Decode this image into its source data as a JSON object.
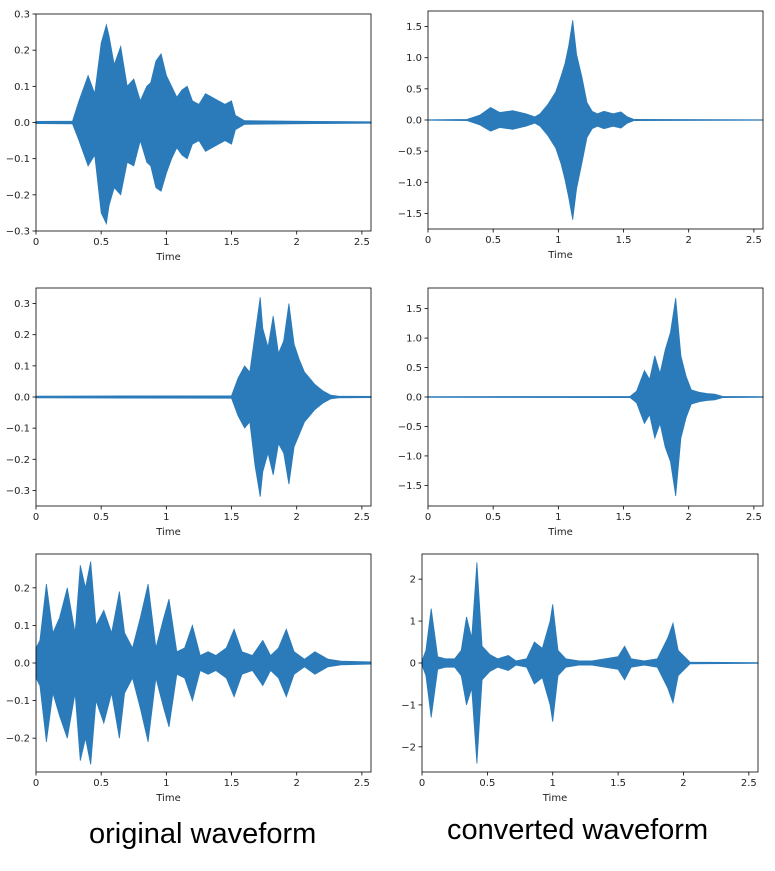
{
  "captions": {
    "left": "original waveform",
    "right": "converted waveform"
  },
  "colors": {
    "waveform": "#2b7bba",
    "axis": "#000000"
  },
  "chart_data": [
    {
      "type": "area",
      "xlabel": "Time",
      "xlim": [
        0,
        2.57
      ],
      "ylim": [
        -0.3,
        0.3
      ],
      "xticks": [
        0,
        0.5,
        1,
        1.5,
        2,
        2.5
      ],
      "xtick_labels": [
        "0",
        "0.5",
        "1",
        "1.5",
        "2",
        "2.5"
      ],
      "yticks": [
        -0.3,
        -0.2,
        -0.1,
        0.0,
        0.1,
        0.2,
        0.3
      ],
      "ytick_labels": [
        "−0.3",
        "−0.2",
        "−0.1",
        "0.0",
        "0.1",
        "0.2",
        "0.3"
      ],
      "envelope": {
        "x": [
          0,
          0.28,
          0.33,
          0.4,
          0.45,
          0.5,
          0.54,
          0.56,
          0.6,
          0.65,
          0.7,
          0.75,
          0.8,
          0.85,
          0.88,
          0.92,
          0.96,
          1.0,
          1.04,
          1.08,
          1.12,
          1.16,
          1.2,
          1.25,
          1.3,
          1.35,
          1.4,
          1.45,
          1.5,
          1.53,
          1.6,
          2.15,
          2.57
        ],
        "top": [
          0.003,
          0.004,
          0.06,
          0.13,
          0.08,
          0.22,
          0.27,
          0.24,
          0.16,
          0.21,
          0.1,
          0.12,
          0.06,
          0.1,
          0.11,
          0.17,
          0.19,
          0.13,
          0.1,
          0.07,
          0.09,
          0.1,
          0.06,
          0.05,
          0.08,
          0.07,
          0.06,
          0.05,
          0.06,
          0.02,
          0.005,
          0.003,
          0.002
        ],
        "bottom": [
          -0.003,
          -0.004,
          -0.05,
          -0.12,
          -0.09,
          -0.25,
          -0.28,
          -0.23,
          -0.18,
          -0.2,
          -0.11,
          -0.12,
          -0.05,
          -0.11,
          -0.12,
          -0.18,
          -0.19,
          -0.14,
          -0.1,
          -0.07,
          -0.09,
          -0.1,
          -0.06,
          -0.05,
          -0.08,
          -0.07,
          -0.06,
          -0.05,
          -0.06,
          -0.02,
          -0.005,
          -0.003,
          -0.002
        ]
      }
    },
    {
      "type": "area",
      "xlabel": "Time",
      "xlim": [
        0,
        2.57
      ],
      "ylim": [
        -1.75,
        1.75
      ],
      "xticks": [
        0,
        0.5,
        1,
        1.5,
        2,
        2.5
      ],
      "xtick_labels": [
        "0",
        "0.5",
        "1",
        "1.5",
        "2",
        "2.5"
      ],
      "yticks": [
        -1.5,
        -1.0,
        -0.5,
        0.0,
        0.5,
        1.0,
        1.5
      ],
      "ytick_labels": [
        "−1.5",
        "−1.0",
        "−0.5",
        "0.0",
        "0.5",
        "1.0",
        "1.5"
      ],
      "envelope": {
        "x": [
          0,
          0.3,
          0.4,
          0.48,
          0.55,
          0.65,
          0.75,
          0.82,
          0.86,
          0.92,
          0.98,
          1.02,
          1.05,
          1.08,
          1.11,
          1.14,
          1.18,
          1.22,
          1.26,
          1.3,
          1.35,
          1.42,
          1.48,
          1.53,
          1.58,
          2.57
        ],
        "top": [
          0.004,
          0.01,
          0.08,
          0.2,
          0.12,
          0.15,
          0.1,
          0.05,
          0.1,
          0.25,
          0.45,
          0.7,
          0.9,
          1.2,
          1.6,
          1.05,
          0.7,
          0.28,
          0.14,
          0.1,
          0.14,
          0.1,
          0.13,
          0.05,
          0.01,
          0.004
        ],
        "bottom": [
          -0.004,
          -0.01,
          -0.08,
          -0.18,
          -0.12,
          -0.15,
          -0.1,
          -0.05,
          -0.1,
          -0.25,
          -0.45,
          -0.7,
          -0.95,
          -1.25,
          -1.6,
          -1.1,
          -0.7,
          -0.28,
          -0.14,
          -0.1,
          -0.14,
          -0.1,
          -0.13,
          -0.05,
          -0.01,
          -0.004
        ]
      }
    },
    {
      "type": "area",
      "xlabel": "Time",
      "xlim": [
        0,
        2.57
      ],
      "ylim": [
        -0.35,
        0.35
      ],
      "xticks": [
        0,
        0.5,
        1,
        1.5,
        2,
        2.5
      ],
      "xtick_labels": [
        "0",
        "0.5",
        "1",
        "1.5",
        "2",
        "2.5"
      ],
      "yticks": [
        -0.3,
        -0.2,
        -0.1,
        0.0,
        0.1,
        0.2,
        0.3
      ],
      "ytick_labels": [
        "−0.3",
        "−0.2",
        "−0.1",
        "0.0",
        "0.1",
        "0.2",
        "0.3"
      ],
      "envelope": {
        "x": [
          0,
          1.5,
          1.55,
          1.6,
          1.64,
          1.68,
          1.72,
          1.74,
          1.78,
          1.82,
          1.86,
          1.9,
          1.94,
          1.98,
          2.02,
          2.06,
          2.1,
          2.14,
          2.2,
          2.26,
          2.32,
          2.57
        ],
        "top": [
          0.003,
          0.004,
          0.06,
          0.1,
          0.08,
          0.2,
          0.32,
          0.22,
          0.16,
          0.26,
          0.14,
          0.18,
          0.3,
          0.17,
          0.12,
          0.08,
          0.06,
          0.04,
          0.02,
          0.006,
          0.003,
          0.002
        ],
        "bottom": [
          -0.003,
          -0.004,
          -0.06,
          -0.1,
          -0.08,
          -0.22,
          -0.32,
          -0.24,
          -0.18,
          -0.25,
          -0.15,
          -0.18,
          -0.28,
          -0.16,
          -0.12,
          -0.08,
          -0.06,
          -0.04,
          -0.02,
          -0.006,
          -0.003,
          -0.002
        ]
      }
    },
    {
      "type": "area",
      "xlabel": "Time",
      "xlim": [
        0,
        2.57
      ],
      "ylim": [
        -1.85,
        1.85
      ],
      "xticks": [
        0,
        0.5,
        1,
        1.5,
        2,
        2.5
      ],
      "xtick_labels": [
        "0",
        "0.5",
        "1",
        "1.5",
        "2",
        "2.5"
      ],
      "yticks": [
        -1.5,
        -1.0,
        -0.5,
        0.0,
        0.5,
        1.0,
        1.5
      ],
      "ytick_labels": [
        "−1.5",
        "−1.0",
        "−0.5",
        "0.0",
        "0.5",
        "1.0",
        "1.5"
      ],
      "envelope": {
        "x": [
          0,
          1.55,
          1.6,
          1.66,
          1.7,
          1.74,
          1.78,
          1.82,
          1.86,
          1.9,
          1.94,
          1.98,
          2.02,
          2.08,
          2.14,
          2.2,
          2.26,
          2.57
        ],
        "top": [
          0.005,
          0.01,
          0.1,
          0.45,
          0.3,
          0.7,
          0.4,
          0.8,
          1.1,
          1.68,
          0.7,
          0.35,
          0.12,
          0.08,
          0.06,
          0.05,
          0.01,
          0.005
        ],
        "bottom": [
          -0.005,
          -0.01,
          -0.1,
          -0.45,
          -0.3,
          -0.7,
          -0.45,
          -0.85,
          -1.1,
          -1.68,
          -0.7,
          -0.35,
          -0.12,
          -0.08,
          -0.06,
          -0.05,
          -0.01,
          -0.005
        ]
      }
    },
    {
      "type": "area",
      "xlabel": "Time",
      "xlim": [
        0,
        2.57
      ],
      "ylim": [
        -0.29,
        0.29
      ],
      "xticks": [
        0,
        0.5,
        1,
        1.5,
        2,
        2.5
      ],
      "xtick_labels": [
        "0",
        "0.5",
        "1",
        "1.5",
        "2",
        "2.5"
      ],
      "yticks": [
        -0.2,
        -0.1,
        0.0,
        0.1,
        0.2
      ],
      "ytick_labels": [
        "−0.2",
        "−0.1",
        "0.0",
        "0.1",
        "0.2"
      ],
      "envelope": {
        "x": [
          0,
          0.03,
          0.08,
          0.13,
          0.18,
          0.24,
          0.3,
          0.34,
          0.38,
          0.42,
          0.46,
          0.52,
          0.58,
          0.64,
          0.68,
          0.74,
          0.8,
          0.86,
          0.92,
          0.98,
          1.02,
          1.08,
          1.14,
          1.2,
          1.26,
          1.32,
          1.38,
          1.46,
          1.52,
          1.58,
          1.66,
          1.74,
          1.8,
          1.86,
          1.92,
          1.98,
          2.06,
          2.14,
          2.24,
          2.34,
          2.57
        ],
        "top": [
          0.04,
          0.06,
          0.21,
          0.08,
          0.12,
          0.2,
          0.08,
          0.26,
          0.2,
          0.27,
          0.1,
          0.14,
          0.08,
          0.19,
          0.08,
          0.04,
          0.12,
          0.21,
          0.04,
          0.12,
          0.17,
          0.03,
          0.04,
          0.1,
          0.02,
          0.03,
          0.02,
          0.04,
          0.09,
          0.03,
          0.02,
          0.06,
          0.02,
          0.04,
          0.09,
          0.03,
          0.01,
          0.03,
          0.01,
          0.005,
          0.003
        ],
        "bottom": [
          -0.04,
          -0.06,
          -0.21,
          -0.08,
          -0.14,
          -0.2,
          -0.08,
          -0.26,
          -0.2,
          -0.27,
          -0.1,
          -0.16,
          -0.08,
          -0.2,
          -0.08,
          -0.04,
          -0.12,
          -0.21,
          -0.04,
          -0.12,
          -0.17,
          -0.03,
          -0.04,
          -0.1,
          -0.02,
          -0.03,
          -0.02,
          -0.04,
          -0.09,
          -0.03,
          -0.02,
          -0.06,
          -0.02,
          -0.04,
          -0.09,
          -0.03,
          -0.01,
          -0.03,
          -0.01,
          -0.005,
          -0.003
        ]
      }
    },
    {
      "type": "area",
      "xlabel": "Time",
      "xlim": [
        0,
        2.57
      ],
      "ylim": [
        -2.6,
        2.6
      ],
      "xticks": [
        0,
        0.5,
        1,
        1.5,
        2,
        2.5
      ],
      "xtick_labels": [
        "0",
        "0.5",
        "1",
        "1.5",
        "2",
        "2.5"
      ],
      "yticks": [
        -2,
        -1,
        0,
        1,
        2
      ],
      "ytick_labels": [
        "−2",
        "−1",
        "0",
        "1",
        "2"
      ],
      "envelope": {
        "x": [
          0,
          0.03,
          0.07,
          0.12,
          0.18,
          0.25,
          0.3,
          0.34,
          0.38,
          0.42,
          0.46,
          0.52,
          0.58,
          0.66,
          0.72,
          0.8,
          0.86,
          0.92,
          0.98,
          1.0,
          1.04,
          1.1,
          1.2,
          1.3,
          1.4,
          1.5,
          1.55,
          1.6,
          1.7,
          1.8,
          1.88,
          1.92,
          1.96,
          2.05,
          2.57
        ],
        "top": [
          0.05,
          0.3,
          1.3,
          0.15,
          0.1,
          0.1,
          0.3,
          1.1,
          0.6,
          2.4,
          0.4,
          0.2,
          0.1,
          0.18,
          0.05,
          0.1,
          0.5,
          0.35,
          1.0,
          1.4,
          0.3,
          0.1,
          0.05,
          0.05,
          0.1,
          0.15,
          0.4,
          0.1,
          0.05,
          0.1,
          0.6,
          0.95,
          0.3,
          0.02,
          0.01
        ],
        "bottom": [
          -0.05,
          -0.3,
          -1.3,
          -0.15,
          -0.1,
          -0.1,
          -0.3,
          -1.0,
          -0.6,
          -2.4,
          -0.4,
          -0.2,
          -0.1,
          -0.18,
          -0.05,
          -0.1,
          -0.5,
          -0.35,
          -1.0,
          -1.4,
          -0.3,
          -0.1,
          -0.05,
          -0.05,
          -0.1,
          -0.15,
          -0.4,
          -0.1,
          -0.05,
          -0.1,
          -0.6,
          -0.95,
          -0.3,
          -0.02,
          -0.01
        ]
      }
    }
  ]
}
